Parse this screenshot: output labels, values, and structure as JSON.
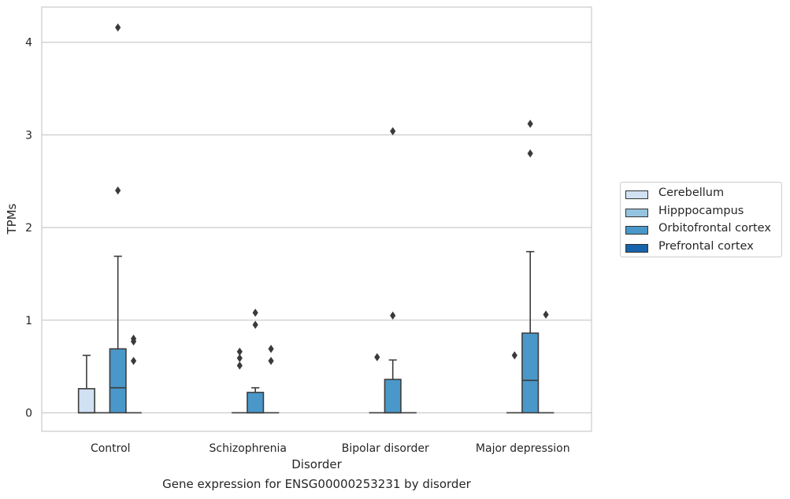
{
  "caption": "Gene expression for ENSG00000253231 by disorder",
  "chart_data": {
    "type": "box",
    "title": "",
    "xlabel": "Disorder",
    "ylabel": "TPMs",
    "ylim": [
      -0.2,
      4.38
    ],
    "yticks": [
      0,
      1,
      2,
      3,
      4
    ],
    "grid": "horizontal",
    "legend_position": "right",
    "categories": [
      "Control",
      "Schizophrenia",
      "Bipolar disorder",
      "Major depression"
    ],
    "series": [
      {
        "name": "Cerebellum",
        "color": "#d0e1f2",
        "boxes": [
          {
            "q1": 0,
            "median": 0,
            "q3": 0.26,
            "whisker_low": 0,
            "whisker_high": 0.62,
            "outliers": []
          },
          null,
          null,
          null
        ]
      },
      {
        "name": "Hipppocampus",
        "color": "#94c4df",
        "boxes": [
          {
            "q1": 0,
            "median": 0,
            "q3": 0,
            "whisker_low": 0,
            "whisker_high": 0,
            "outliers": []
          },
          {
            "q1": 0,
            "median": 0,
            "q3": 0,
            "whisker_low": 0,
            "whisker_high": 0,
            "outliers": [
              0.51,
              0.59,
              0.66
            ]
          },
          {
            "q1": 0,
            "median": 0,
            "q3": 0,
            "whisker_low": 0,
            "whisker_high": 0,
            "outliers": [
              0.6
            ]
          },
          {
            "q1": 0,
            "median": 0,
            "q3": 0,
            "whisker_low": 0,
            "whisker_high": 0,
            "outliers": [
              0.62
            ]
          }
        ]
      },
      {
        "name": "Orbitofrontal cortex",
        "color": "#4a98c9",
        "boxes": [
          {
            "q1": 0,
            "median": 0.27,
            "q3": 0.69,
            "whisker_low": 0,
            "whisker_high": 1.69,
            "outliers": [
              2.4,
              4.16
            ]
          },
          {
            "q1": 0,
            "median": 0,
            "q3": 0.22,
            "whisker_low": 0,
            "whisker_high": 0.27,
            "outliers": [
              0.95,
              1.08
            ]
          },
          {
            "q1": 0,
            "median": 0,
            "q3": 0.36,
            "whisker_low": 0,
            "whisker_high": 0.57,
            "outliers": [
              1.05,
              3.04
            ]
          },
          {
            "q1": 0,
            "median": 0.35,
            "q3": 0.86,
            "whisker_low": 0,
            "whisker_high": 1.74,
            "outliers": [
              2.8,
              3.12
            ]
          }
        ]
      },
      {
        "name": "Prefrontal cortex",
        "color": "#1764ab",
        "boxes": [
          {
            "q1": 0,
            "median": 0,
            "q3": 0,
            "whisker_low": 0,
            "whisker_high": 0,
            "outliers": [
              0.56,
              0.77,
              0.8
            ]
          },
          {
            "q1": 0,
            "median": 0,
            "q3": 0,
            "whisker_low": 0,
            "whisker_high": 0,
            "outliers": [
              0.56,
              0.69
            ]
          },
          {
            "q1": 0,
            "median": 0,
            "q3": 0,
            "whisker_low": 0,
            "whisker_high": 0,
            "outliers": []
          },
          {
            "q1": 0,
            "median": 0,
            "q3": 0,
            "whisker_low": 0,
            "whisker_high": 0,
            "outliers": [
              1.06
            ]
          }
        ]
      }
    ]
  }
}
